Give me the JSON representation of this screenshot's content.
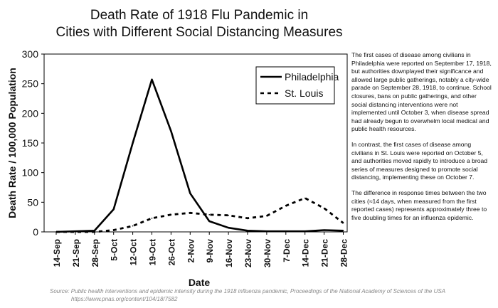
{
  "chart_data": {
    "type": "line",
    "title": "Death Rate of 1918 Flu Pandemic in Cities with Different Social Distancing Measures",
    "title_lines": [
      "Death Rate of 1918 Flu Pandemic in",
      "Cities with Different Social Distancing Measures"
    ],
    "xlabel": "Date",
    "ylabel": "Death Rate / 100,000 Population",
    "ylim": [
      0,
      300
    ],
    "yticks": [
      0,
      50,
      100,
      150,
      200,
      250,
      300
    ],
    "grid": false,
    "legend_position": "top-right",
    "categories": [
      "14-Sep",
      "21-Sep",
      "28-Sep",
      "5-Oct",
      "12-Oct",
      "19-Oct",
      "26-Oct",
      "2-Nov",
      "9-Nov",
      "16-Nov",
      "23-Nov",
      "30-Nov",
      "7-Dec",
      "14-Dec",
      "21-Dec",
      "28-Dec"
    ],
    "series": [
      {
        "name": "Philadelphia",
        "style": "solid",
        "color": "#000000",
        "values": [
          0,
          1,
          2,
          38,
          150,
          257,
          170,
          65,
          18,
          7,
          2,
          1,
          1,
          1,
          3,
          2
        ]
      },
      {
        "name": "St. Louis",
        "style": "dotted",
        "color": "#000000",
        "values": [
          0,
          0,
          0,
          3,
          10,
          23,
          29,
          32,
          29,
          28,
          23,
          27,
          44,
          57,
          40,
          15
        ]
      }
    ]
  },
  "note": {
    "p1": "The first cases of disease among civilians in Philadelphia were reported on September 17, 1918, but authorities downplayed their significance and allowed large public gatherings, notably a city-wide parade on September 28, 1918, to continue. School closures, bans on public gatherings, and other social distancing interventions were not implemented until October 3, when disease spread had already begun to overwhelm local medical and public health resources.",
    "p2": "In contrast, the first cases of disease among civilians in St. Louis were reported on October 5, and authorities moved rapidly to introduce a broad series of measures designed to promote social distancing, implementing these on October 7.",
    "p3": "The difference in response times between the two cities (≈14 days, when measured from the first reported cases) represents approximately three to five doubling times for an influenza epidemic."
  },
  "source": {
    "line1": "Source: Public health interventions and epidemic intensity during the 1918 influenza pandemic, Proceedings of the National Academy of Sciences of the USA",
    "line2": "https://www.pnas.org/content/104/18/7582"
  }
}
